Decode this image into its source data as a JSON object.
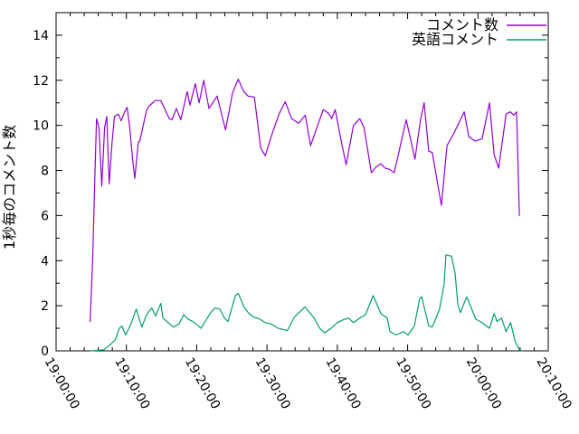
{
  "chart_data": {
    "type": "line",
    "title": "",
    "xlabel": "",
    "ylabel": "1秒毎のコメント数",
    "grid": false,
    "legend_position": "top-right-inside",
    "background": "#ffffff",
    "border_color": "#000000",
    "text_color": "#000000",
    "ylim": [
      0,
      15
    ],
    "y_major_ticks": [
      0,
      2,
      4,
      6,
      8,
      10,
      12,
      14
    ],
    "y_minor_tick_interval": 1,
    "x_domain_minutes": [
      0,
      70
    ],
    "x_major_ticks": [
      "19:00:00",
      "19:10:00",
      "19:20:00",
      "19:30:00",
      "19:40:00",
      "19:50:00",
      "20:00:00",
      "20:10:00"
    ],
    "x_major_tick_interval_minutes": 10,
    "x_minor_tick_interval_minutes": 2,
    "x_tick_rotation_deg": 60,
    "series": [
      {
        "name": "コメント数",
        "color": "#9400d3",
        "points_minutes_after_1900_vs_value": [
          [
            4.84,
            1.3
          ],
          [
            5.2,
            4.0
          ],
          [
            5.5,
            7.5
          ],
          [
            5.75,
            10.3
          ],
          [
            6.1,
            9.9
          ],
          [
            6.5,
            7.3
          ],
          [
            6.9,
            9.9
          ],
          [
            7.2,
            10.4
          ],
          [
            7.55,
            7.4
          ],
          [
            7.95,
            9.2
          ],
          [
            8.3,
            10.4
          ],
          [
            8.85,
            10.5
          ],
          [
            9.25,
            10.2
          ],
          [
            9.75,
            10.6
          ],
          [
            10.1,
            10.8
          ],
          [
            10.45,
            10.0
          ],
          [
            10.9,
            8.45
          ],
          [
            11.2,
            7.65
          ],
          [
            11.7,
            9.25
          ],
          [
            11.9,
            9.3
          ],
          [
            12.85,
            10.65
          ],
          [
            13.2,
            10.85
          ],
          [
            14.1,
            11.1
          ],
          [
            14.9,
            11.1
          ],
          [
            16.1,
            10.3
          ],
          [
            16.5,
            10.25
          ],
          [
            17.1,
            10.75
          ],
          [
            17.75,
            10.25
          ],
          [
            18.65,
            11.5
          ],
          [
            19.05,
            10.9
          ],
          [
            19.8,
            11.85
          ],
          [
            20.35,
            11.0
          ],
          [
            21.0,
            12.0
          ],
          [
            21.75,
            10.75
          ],
          [
            22.9,
            11.3
          ],
          [
            24.1,
            9.8
          ],
          [
            25.1,
            11.45
          ],
          [
            25.9,
            12.05
          ],
          [
            26.7,
            11.5
          ],
          [
            27.3,
            11.3
          ],
          [
            28.2,
            11.25
          ],
          [
            29.1,
            9.0
          ],
          [
            29.75,
            8.65
          ],
          [
            30.7,
            9.6
          ],
          [
            31.7,
            10.5
          ],
          [
            32.6,
            11.05
          ],
          [
            33.5,
            10.3
          ],
          [
            34.5,
            10.1
          ],
          [
            35.45,
            10.45
          ],
          [
            36.2,
            9.1
          ],
          [
            37.1,
            9.9
          ],
          [
            38.0,
            10.7
          ],
          [
            38.7,
            10.55
          ],
          [
            39.2,
            10.3
          ],
          [
            39.7,
            10.7
          ],
          [
            40.5,
            9.4
          ],
          [
            41.25,
            8.25
          ],
          [
            42.3,
            10.0
          ],
          [
            43.2,
            10.3
          ],
          [
            43.8,
            9.9
          ],
          [
            44.85,
            7.9
          ],
          [
            45.5,
            8.15
          ],
          [
            46.2,
            8.3
          ],
          [
            46.8,
            8.1
          ],
          [
            47.45,
            8.05
          ],
          [
            48.1,
            7.9
          ],
          [
            49.8,
            10.25
          ],
          [
            51.05,
            8.5
          ],
          [
            51.8,
            10.2
          ],
          [
            52.35,
            11.0
          ],
          [
            53.0,
            8.85
          ],
          [
            53.5,
            8.8
          ],
          [
            54.8,
            6.45
          ],
          [
            55.6,
            9.1
          ],
          [
            56.5,
            9.6
          ],
          [
            58.05,
            10.6
          ],
          [
            58.7,
            9.5
          ],
          [
            59.6,
            9.3
          ],
          [
            60.6,
            9.4
          ],
          [
            61.65,
            11.0
          ],
          [
            62.3,
            8.7
          ],
          [
            62.95,
            8.1
          ],
          [
            64.0,
            10.5
          ],
          [
            64.6,
            10.6
          ],
          [
            65.1,
            10.45
          ],
          [
            65.5,
            10.6
          ],
          [
            65.9,
            6.0
          ]
        ]
      },
      {
        "name": "英語コメント",
        "color": "#009e73",
        "points_minutes_after_1900_vs_value": [
          [
            4.95,
            0
          ],
          [
            6.8,
            0.05
          ],
          [
            7.8,
            0.3
          ],
          [
            8.45,
            0.5
          ],
          [
            9.0,
            1.0
          ],
          [
            9.35,
            1.1
          ],
          [
            9.9,
            0.7
          ],
          [
            10.65,
            1.2
          ],
          [
            11.4,
            1.85
          ],
          [
            12.2,
            1.05
          ],
          [
            12.85,
            1.6
          ],
          [
            13.6,
            1.9
          ],
          [
            14.15,
            1.55
          ],
          [
            14.9,
            2.1
          ],
          [
            15.2,
            1.45
          ],
          [
            16.7,
            1.05
          ],
          [
            17.5,
            1.2
          ],
          [
            18.15,
            1.6
          ],
          [
            18.8,
            1.4
          ],
          [
            19.45,
            1.3
          ],
          [
            20.6,
            1.0
          ],
          [
            22.0,
            1.7
          ],
          [
            22.65,
            1.9
          ],
          [
            23.3,
            1.85
          ],
          [
            23.95,
            1.45
          ],
          [
            24.45,
            1.3
          ],
          [
            25.5,
            2.45
          ],
          [
            25.9,
            2.55
          ],
          [
            26.8,
            1.9
          ],
          [
            27.45,
            1.65
          ],
          [
            28.1,
            1.5
          ],
          [
            29.0,
            1.4
          ],
          [
            29.75,
            1.25
          ],
          [
            30.55,
            1.2
          ],
          [
            31.6,
            1.0
          ],
          [
            32.9,
            0.9
          ],
          [
            33.9,
            1.5
          ],
          [
            35.4,
            1.95
          ],
          [
            36.7,
            1.45
          ],
          [
            37.5,
            1.0
          ],
          [
            38.2,
            0.8
          ],
          [
            39.1,
            1.0
          ],
          [
            40.0,
            1.25
          ],
          [
            41.0,
            1.4
          ],
          [
            41.6,
            1.45
          ],
          [
            42.3,
            1.25
          ],
          [
            43.2,
            1.45
          ],
          [
            44.0,
            1.6
          ],
          [
            45.1,
            2.45
          ],
          [
            46.2,
            1.65
          ],
          [
            47.1,
            1.45
          ],
          [
            47.5,
            0.85
          ],
          [
            48.35,
            0.7
          ],
          [
            49.4,
            0.85
          ],
          [
            50.05,
            0.7
          ],
          [
            50.95,
            1.1
          ],
          [
            51.7,
            2.3
          ],
          [
            52.0,
            2.4
          ],
          [
            53.0,
            1.1
          ],
          [
            53.5,
            1.05
          ],
          [
            54.55,
            1.85
          ],
          [
            55.2,
            3.0
          ],
          [
            55.45,
            4.25
          ],
          [
            56.25,
            4.2
          ],
          [
            56.75,
            3.45
          ],
          [
            57.15,
            2.05
          ],
          [
            57.5,
            1.7
          ],
          [
            58.4,
            2.4
          ],
          [
            59.7,
            1.4
          ],
          [
            60.35,
            1.3
          ],
          [
            61.65,
            1.0
          ],
          [
            62.3,
            1.65
          ],
          [
            62.7,
            1.3
          ],
          [
            63.35,
            1.45
          ],
          [
            64.0,
            0.85
          ],
          [
            64.65,
            1.25
          ],
          [
            65.3,
            0.4
          ],
          [
            65.9,
            0.05
          ],
          [
            66.3,
            0
          ]
        ]
      }
    ]
  }
}
